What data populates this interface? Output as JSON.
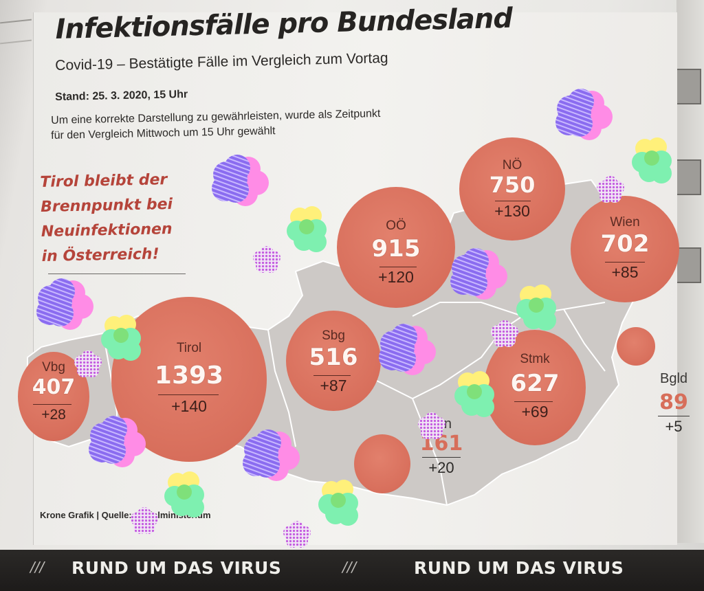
{
  "headline": {
    "title": "Infektionsfälle pro Bundesland",
    "subtitle": "Covid-19 – Bestätigte Fälle im Vergleich zum Vortag",
    "stand": "Stand: 25. 3. 2020, 15 Uhr",
    "note_line1": "Um eine korrekte Darstellung zu gewährleisten, wurde als Zeitpunkt",
    "note_line2": "für den Vergleich Mittwoch um 15 Uhr gewählt"
  },
  "callout": {
    "line1": "Tirol bleibt der",
    "line2": "Brennpunkt bei",
    "line3": "Neuinfektionen",
    "line4": "in Österreich!"
  },
  "states": {
    "noe": {
      "name": "NÖ",
      "total": "750",
      "delta": "+130"
    },
    "ooe": {
      "name": "OÖ",
      "total": "915",
      "delta": "+120"
    },
    "wien": {
      "name": "Wien",
      "total": "702",
      "delta": "+85"
    },
    "tirol": {
      "name": "Tirol",
      "total": "1393",
      "delta": "+140"
    },
    "sbg": {
      "name": "Sbg",
      "total": "516",
      "delta": "+87"
    },
    "vbg": {
      "name": "Vbg",
      "total": "407",
      "delta": "+28"
    },
    "stmk": {
      "name": "Stmk",
      "total": "627",
      "delta": "+69"
    },
    "bgld": {
      "name": "Bgld",
      "total": "89",
      "delta": "+5"
    },
    "ktn": {
      "name": "Ktn",
      "total": "161",
      "delta": "+20"
    }
  },
  "credit": "Krone Grafik | Quelle: Sozialministerium",
  "footer": {
    "slashes": "///",
    "label": "RUND UM DAS VIRUS"
  },
  "colors": {
    "bubble": "#d86f5c",
    "callout_text": "#b5443a",
    "map_land": "#cfcbc8",
    "footer_bg": "#2b2927"
  },
  "sticker_colors": [
    "#ff8ce6",
    "#8a6cf0",
    "#fff07a",
    "#7ef0b0",
    "#c45be0"
  ]
}
